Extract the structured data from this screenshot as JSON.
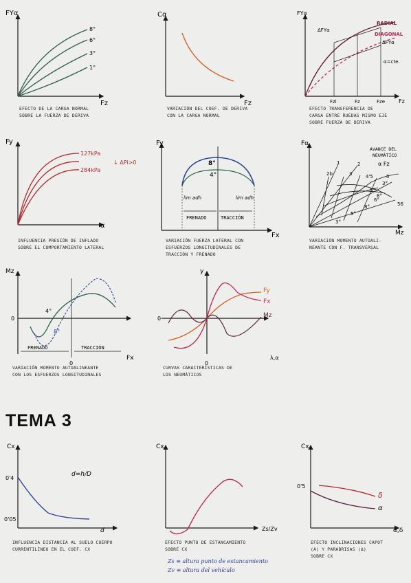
{
  "row1": {
    "p1": {
      "y_label": "FYα",
      "x_label": "Fz",
      "curves": [
        "8°",
        "6°",
        "3°",
        "1°"
      ],
      "caption": [
        "EFECTO DE LA CARGA NORMAL",
        "SOBRE LA FUERZA DE DERIVA"
      ]
    },
    "p2": {
      "y_label": "Cα",
      "x_label": "Fz",
      "caption": [
        "VARIACIÓN DEL COEF. DE DERIVA",
        "CON LA CARGA NORMAL"
      ]
    },
    "p3": {
      "y_label": "FYα",
      "radial": "RADIAL",
      "diagonal": "DIAGONAL",
      "dfy1": "ΔFYα",
      "dfy2": "ΔFYα",
      "alpha": "α=cte.",
      "ticks": [
        "Fzi",
        "Fz",
        "Fze"
      ],
      "x_label": "Fz",
      "caption": [
        "EFECTO TRANSFERENCIA DE",
        "CARGA ENTRE RUEDAS MISMO EJE",
        "SOBRE FUERZA DE DERIVA"
      ]
    }
  },
  "row2": {
    "p4": {
      "y_label": "Fy",
      "x_label": "α",
      "p_top": "127kPa",
      "p_bot": "284kPa",
      "delta": "↓ ΔPi>0",
      "caption": [
        "INFLUENCIA PRESIÓN DE INFLADO",
        "SOBRE EL COMPORTAMIENTO LATERAL"
      ]
    },
    "p5": {
      "y_label": "Fy",
      "x_label": "Fx",
      "c8": "8°",
      "c4": "4°",
      "lim1": "lim adh",
      "lim2": "lim adh",
      "frenado": "FRENADO",
      "traccion": "TRACCIÓN",
      "caption": [
        "VARIACIÓN FUERZA LATERAL CON",
        "ESFUERZOS LONGITUDINALES DE",
        "TRACCIÓN Y FRENADO"
      ]
    },
    "p6": {
      "y_label": "Fα",
      "x_label": "Mz",
      "avance": [
        "AVANCE DEL",
        "NEUMÁTICO"
      ],
      "avance_sym": "α  Fz",
      "rays": [
        "1",
        "2",
        "2b",
        "3",
        "4'5",
        "5",
        "56"
      ],
      "degrees": [
        "3°",
        "5°",
        "6°",
        "8°",
        "3°",
        "5°",
        "8°"
      ],
      "caption": [
        "VARIACIÓN MOMENTO AUTOALI-",
        "NEANTE CON F. TRANSVERSAL"
      ]
    }
  },
  "row3": {
    "p7": {
      "y_label": "Mz",
      "x_label": "Fx",
      "zero_y": "0",
      "zero_x": "0",
      "c4": "4°",
      "c8": "8°",
      "frenado": "FRENADO",
      "traccion": "TRACCIÓN",
      "caption": [
        "VARIACIÓN MOMENTO AUTOALINEANTE",
        "CON LOS ESFUERZOS LONGITUDINALES"
      ]
    },
    "p8": {
      "y_label": "y",
      "x_label": "λ,α",
      "zero_y": "0",
      "zero_x": "0",
      "fy": "Fy",
      "fx": "Fx",
      "mz": "Mz",
      "caption": [
        "CURVAS CARACTERÍSTICAS DE",
        "LOS NEUMÁTICOS"
      ]
    }
  },
  "tema": "TEMA 3",
  "row4": {
    "p9": {
      "y_label": "Cx",
      "x_label": "d",
      "v1": "0'4",
      "v2": "0'05",
      "formula": "d=h/D",
      "caption": [
        "INFLUENCIA DISTANCIA AL SUELO CUERPO",
        "CURRENTILÍNEO EN EL COEF. Cx"
      ]
    },
    "p10": {
      "y_label": "Cx",
      "x_label": "Zs/Zv",
      "caption": [
        "EFECTO PUNTO DE ESTANCAMIENTO",
        "SOBRE Cx"
      ],
      "notes": [
        "Zs ≡ altura punto de estancamiento",
        "Zv ≡ altura del vehículo"
      ]
    },
    "p11": {
      "y_label": "Cx",
      "x_label": "α,δ",
      "v1": "0'5",
      "delta": "δ",
      "alpha": "α",
      "caption": [
        "EFECTO INCLINACIONES CAPOT",
        "(α) Y PARABRISAS (δ)",
        "SOBRE Cx"
      ]
    }
  },
  "colors": {
    "green": "#2f5e4c",
    "orange": "#d4601a",
    "red": "#b3282d",
    "pink": "#c4245a",
    "blue": "#2b44a0",
    "purple": "#5a2440",
    "navy": "#2a3a9a"
  }
}
